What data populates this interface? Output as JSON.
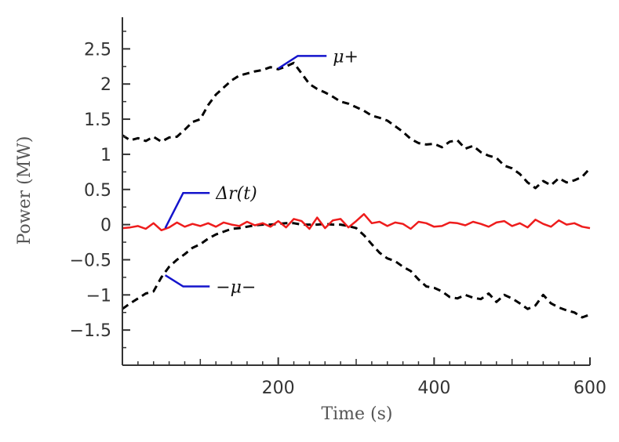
{
  "chart_data": {
    "type": "line",
    "xlabel": "Time (s)",
    "ylabel": "Power (MW)",
    "xlim": [
      0,
      600
    ],
    "ylim": [
      -2.0,
      2.95
    ],
    "x_ticks": [
      200,
      400,
      600
    ],
    "y_ticks": [
      -1.5,
      -1,
      -0.5,
      0,
      0.5,
      1,
      1.5,
      2,
      2.5
    ],
    "y_tick_labels": [
      "−1.5",
      "−1",
      "−0.5",
      "0",
      "0.5",
      "1",
      "1.5",
      "2",
      "2.5"
    ],
    "grid": false,
    "series": [
      {
        "name": "μ+",
        "color": "#000000",
        "style": "dashed",
        "x": [
          0,
          10,
          20,
          30,
          40,
          50,
          60,
          70,
          80,
          90,
          100,
          110,
          120,
          130,
          140,
          150,
          160,
          170,
          180,
          190,
          200,
          210,
          220,
          230,
          240,
          250,
          260,
          270,
          280,
          290,
          300,
          310,
          320,
          330,
          340,
          350,
          360,
          370,
          380,
          390,
          400,
          410,
          420,
          430,
          440,
          450,
          460,
          470,
          480,
          490,
          500,
          510,
          520,
          530,
          540,
          550,
          560,
          570,
          580,
          590,
          600
        ],
        "values": [
          1.27,
          1.2,
          1.23,
          1.19,
          1.25,
          1.18,
          1.24,
          1.25,
          1.35,
          1.46,
          1.5,
          1.7,
          1.85,
          1.95,
          2.05,
          2.12,
          2.15,
          2.18,
          2.2,
          2.24,
          2.21,
          2.25,
          2.3,
          2.15,
          2.0,
          1.93,
          1.88,
          1.82,
          1.75,
          1.72,
          1.67,
          1.62,
          1.55,
          1.52,
          1.48,
          1.4,
          1.32,
          1.22,
          1.16,
          1.14,
          1.15,
          1.1,
          1.18,
          1.2,
          1.08,
          1.12,
          1.03,
          0.98,
          0.95,
          0.84,
          0.8,
          0.72,
          0.6,
          0.52,
          0.62,
          0.56,
          0.66,
          0.6,
          0.63,
          0.68,
          0.8
        ]
      },
      {
        "name": "−μ−",
        "color": "#000000",
        "style": "dashed",
        "x": [
          0,
          10,
          20,
          30,
          40,
          50,
          60,
          70,
          80,
          90,
          100,
          110,
          120,
          130,
          140,
          150,
          160,
          170,
          180,
          190,
          200,
          210,
          220,
          230,
          240,
          250,
          260,
          270,
          280,
          290,
          300,
          310,
          320,
          330,
          340,
          350,
          360,
          370,
          380,
          390,
          400,
          410,
          420,
          430,
          440,
          450,
          460,
          470,
          480,
          490,
          500,
          510,
          520,
          530,
          540,
          550,
          560,
          570,
          580,
          590,
          600
        ],
        "values": [
          -1.2,
          -1.12,
          -1.05,
          -0.98,
          -0.95,
          -0.75,
          -0.6,
          -0.5,
          -0.42,
          -0.33,
          -0.28,
          -0.2,
          -0.14,
          -0.1,
          -0.06,
          -0.05,
          -0.03,
          -0.01,
          0.0,
          0.0,
          0.01,
          0.02,
          0.02,
          0.0,
          0.0,
          0.0,
          0.01,
          0.0,
          0.0,
          -0.02,
          -0.05,
          -0.15,
          -0.28,
          -0.4,
          -0.48,
          -0.52,
          -0.6,
          -0.66,
          -0.78,
          -0.88,
          -0.9,
          -0.95,
          -1.03,
          -1.05,
          -1.0,
          -1.04,
          -1.06,
          -0.98,
          -1.1,
          -1.0,
          -1.05,
          -1.12,
          -1.2,
          -1.15,
          -1.0,
          -1.12,
          -1.18,
          -1.22,
          -1.25,
          -1.32,
          -1.28
        ]
      },
      {
        "name": "Δr(t)",
        "color": "#ee1c1c",
        "style": "solid",
        "x": [
          0,
          10,
          20,
          30,
          40,
          50,
          60,
          70,
          80,
          90,
          100,
          110,
          120,
          130,
          140,
          150,
          160,
          170,
          180,
          190,
          200,
          210,
          220,
          230,
          240,
          250,
          260,
          270,
          280,
          290,
          300,
          310,
          320,
          330,
          340,
          350,
          360,
          370,
          380,
          390,
          400,
          410,
          420,
          430,
          440,
          450,
          460,
          470,
          480,
          490,
          500,
          510,
          520,
          530,
          540,
          550,
          560,
          570,
          580,
          590,
          600
        ],
        "values": [
          -0.05,
          -0.04,
          -0.02,
          -0.06,
          0.02,
          -0.08,
          -0.04,
          0.03,
          -0.03,
          0.01,
          -0.02,
          0.02,
          -0.03,
          0.03,
          0.0,
          -0.02,
          0.04,
          -0.01,
          0.02,
          -0.03,
          0.05,
          -0.04,
          0.08,
          0.05,
          -0.06,
          0.1,
          -0.05,
          0.06,
          0.08,
          -0.04,
          0.05,
          0.15,
          0.02,
          0.04,
          -0.02,
          0.03,
          0.01,
          -0.06,
          0.04,
          0.02,
          -0.03,
          -0.02,
          0.03,
          0.02,
          -0.01,
          0.04,
          0.01,
          -0.03,
          0.03,
          0.05,
          -0.02,
          0.02,
          -0.04,
          0.07,
          0.01,
          -0.03,
          0.06,
          0.0,
          0.02,
          -0.03,
          -0.05
        ]
      }
    ],
    "annotations": [
      {
        "name": "mu-plus",
        "text": "μ+",
        "point": [
          200,
          2.22
        ],
        "elbow": [
          225,
          2.4
        ],
        "end": [
          262,
          2.4
        ]
      },
      {
        "name": "delta-r",
        "text": "Δr(t)",
        "point": [
          55,
          -0.05
        ],
        "elbow": [
          78,
          0.45
        ],
        "end": [
          112,
          0.45
        ]
      },
      {
        "name": "minus-mu-minus",
        "text": "−μ−",
        "point": [
          55,
          -0.72
        ],
        "elbow": [
          78,
          -0.88
        ],
        "end": [
          112,
          -0.88
        ]
      }
    ],
    "annotation_color": "#1414cc"
  }
}
